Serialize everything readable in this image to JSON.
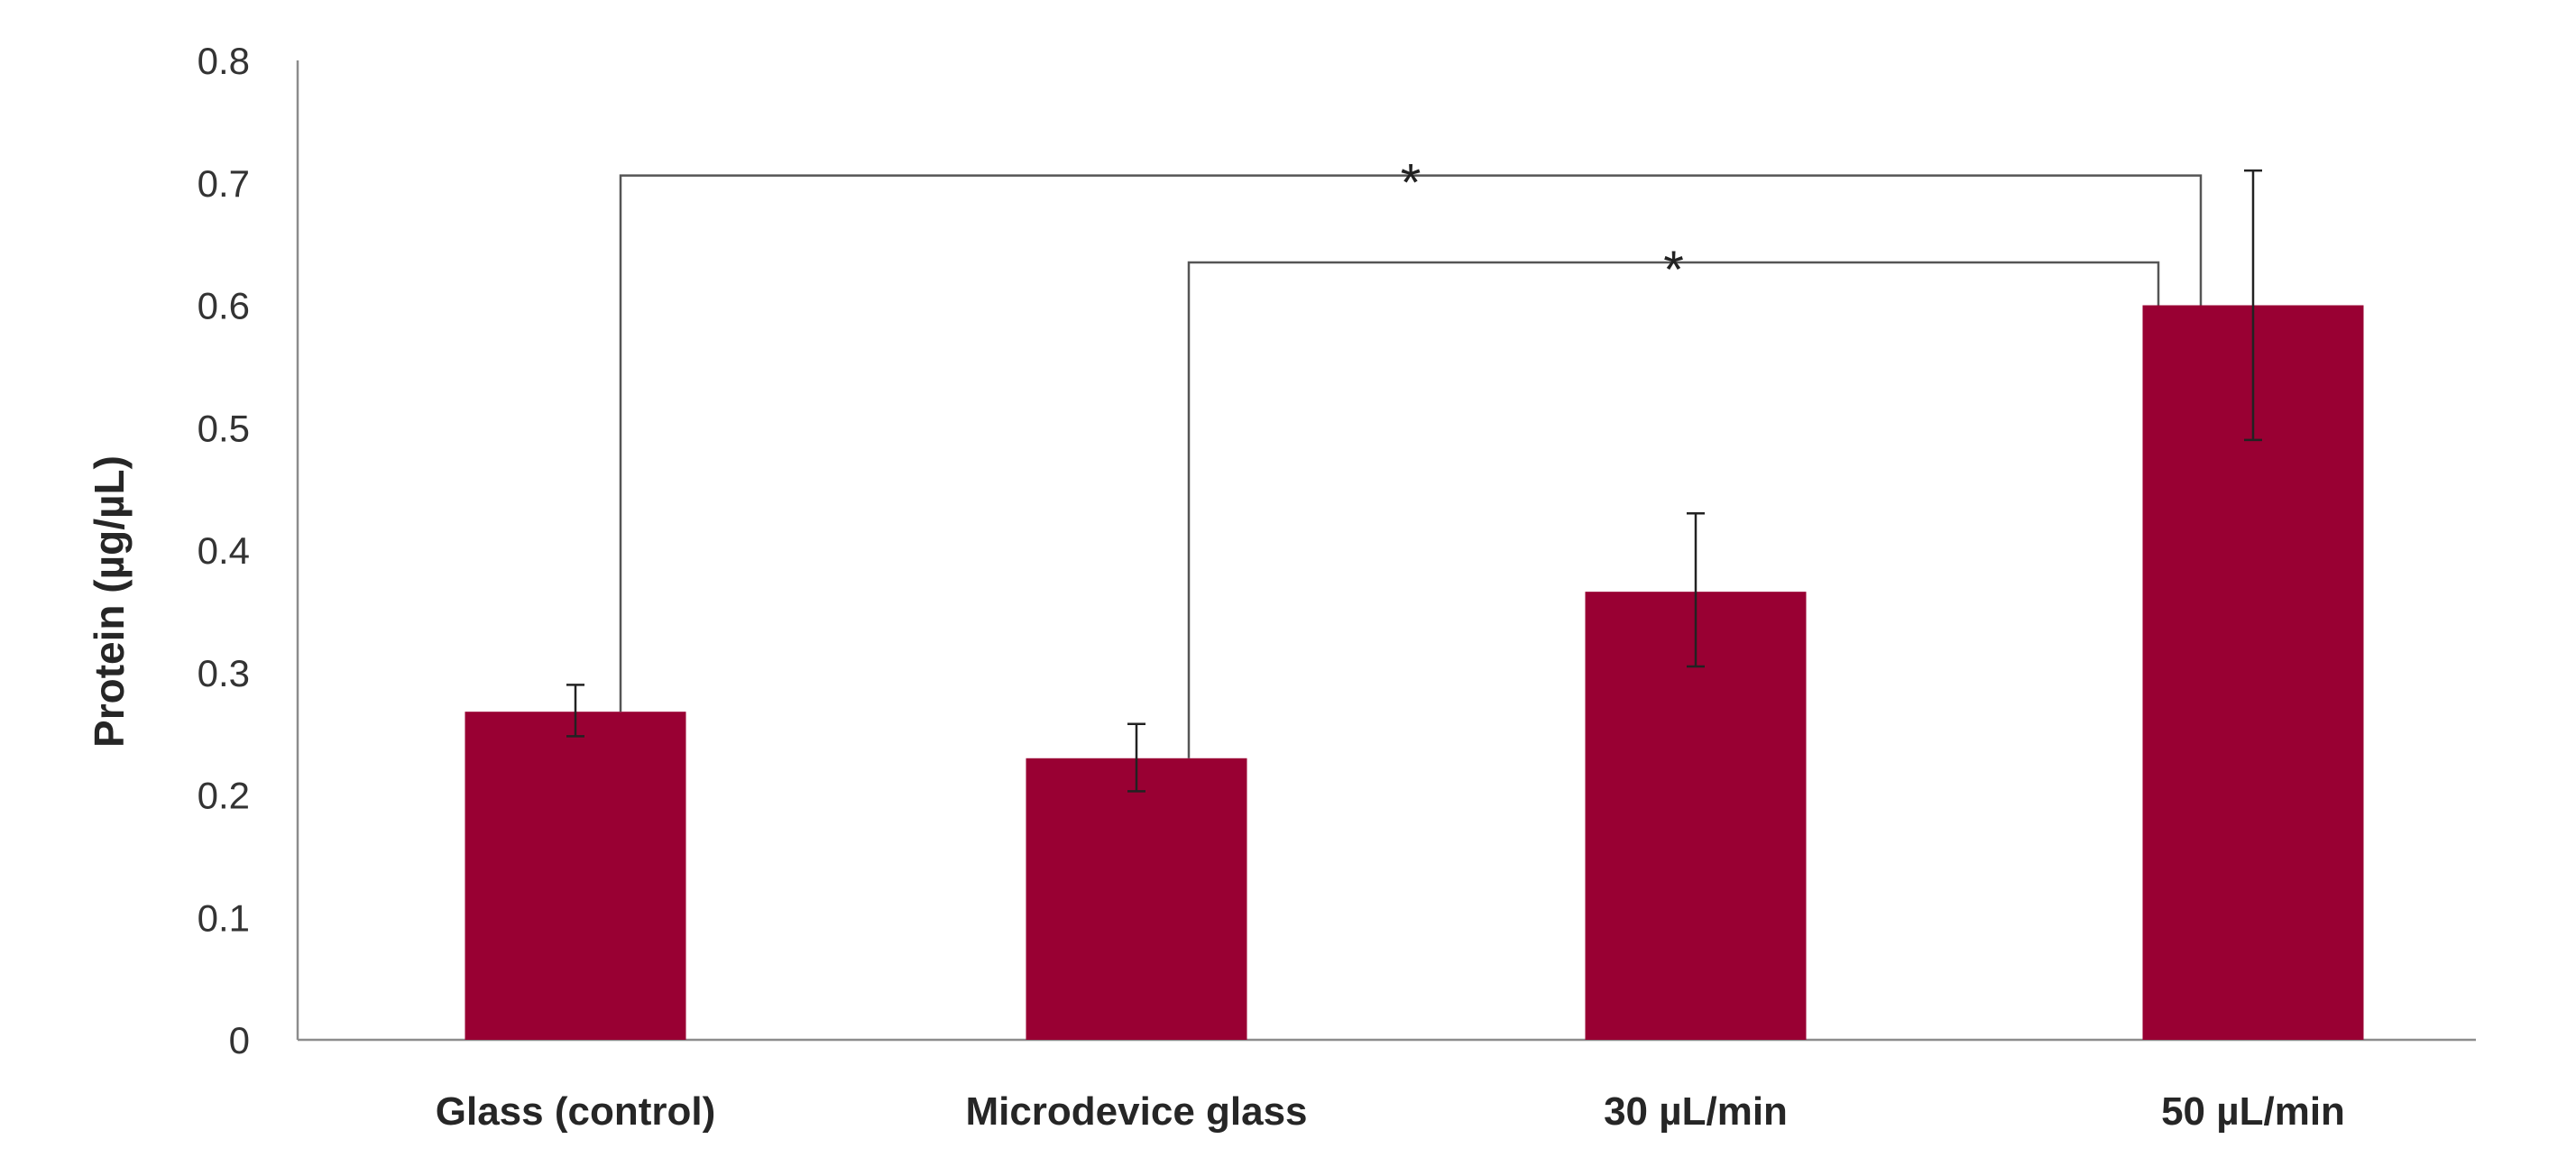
{
  "chart_data": {
    "type": "bar",
    "title": "",
    "xlabel": "",
    "ylabel": "Protein (µg/µL)",
    "categories": [
      "Glass (control)",
      "Microdevice glass",
      "30 µL/min",
      "50 µL/min"
    ],
    "values": [
      0.268,
      0.23,
      0.366,
      0.6
    ],
    "error_upper": [
      0.29,
      0.258,
      0.43,
      0.71
    ],
    "error_lower": [
      0.248,
      0.203,
      0.305,
      0.49
    ],
    "ylim": [
      0,
      0.8
    ],
    "yticks": [
      0,
      0.1,
      0.2,
      0.3,
      0.4,
      0.5,
      0.6,
      0.7,
      0.8
    ],
    "ytick_labels": [
      "0",
      "0.1",
      "0.2",
      "0.3",
      "0.4",
      "0.5",
      "0.6",
      "0.7",
      "0.8"
    ],
    "grid": false,
    "bar_color": "#990033",
    "significance": [
      {
        "from": 0,
        "to": 3,
        "level": 0.706,
        "label": "*"
      },
      {
        "from": 1,
        "to": 3,
        "level": 0.635,
        "label": "*"
      }
    ]
  }
}
